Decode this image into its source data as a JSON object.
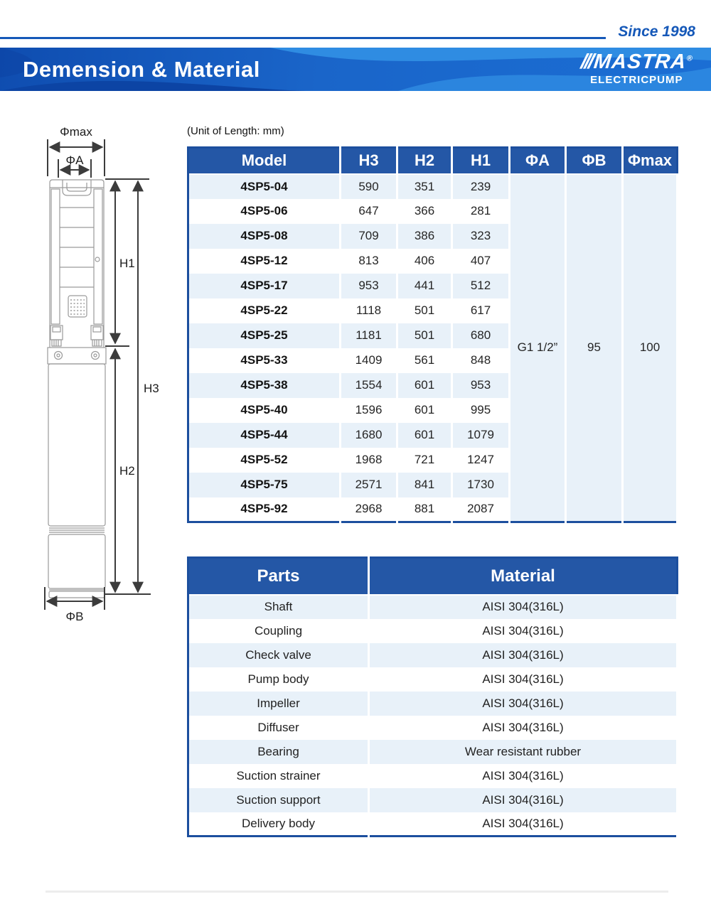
{
  "header": {
    "since": "Since 1998",
    "title": "Demension & Material",
    "logo": {
      "slashes": "///",
      "brand": "MASTRA",
      "registered": "®",
      "subtitle": "ELECTRICPUMP"
    }
  },
  "unit_note": "(Unit of Length: mm)",
  "diagram": {
    "labels": {
      "phi_max": "Φmax",
      "phi_a": "ΦA",
      "h1": "H1",
      "h2": "H2",
      "h3": "H3",
      "phi_b": "ΦB"
    }
  },
  "spec_table": {
    "headers": [
      "Model",
      "H3",
      "H2",
      "H1",
      "ΦA",
      "ΦB",
      "Φmax"
    ],
    "rows": [
      [
        "4SP5-04",
        "590",
        "351",
        "239"
      ],
      [
        "4SP5-06",
        "647",
        "366",
        "281"
      ],
      [
        "4SP5-08",
        "709",
        "386",
        "323"
      ],
      [
        "4SP5-12",
        "813",
        "406",
        "407"
      ],
      [
        "4SP5-17",
        "953",
        "441",
        "512"
      ],
      [
        "4SP5-22",
        "1118",
        "501",
        "617"
      ],
      [
        "4SP5-25",
        "1181",
        "501",
        "680"
      ],
      [
        "4SP5-33",
        "1409",
        "561",
        "848"
      ],
      [
        "4SP5-38",
        "1554",
        "601",
        "953"
      ],
      [
        "4SP5-40",
        "1596",
        "601",
        "995"
      ],
      [
        "4SP5-44",
        "1680",
        "601",
        "1079"
      ],
      [
        "4SP5-52",
        "1968",
        "721",
        "1247"
      ],
      [
        "4SP5-75",
        "2571",
        "841",
        "1730"
      ],
      [
        "4SP5-92",
        "2968",
        "881",
        "2087"
      ]
    ],
    "merged_values": {
      "phi_a": "G1 1/2”",
      "phi_b": "95",
      "phi_max": "100"
    }
  },
  "parts_table": {
    "headers": [
      "Parts",
      "Material"
    ],
    "rows": [
      [
        "Shaft",
        "AISI 304(316L)"
      ],
      [
        "Coupling",
        "AISI 304(316L)"
      ],
      [
        "Check valve",
        "AISI 304(316L)"
      ],
      [
        "Pump body",
        "AISI 304(316L)"
      ],
      [
        "Impeller",
        "AISI 304(316L)"
      ],
      [
        "Diffuser",
        "AISI 304(316L)"
      ],
      [
        "Bearing",
        "Wear resistant rubber"
      ],
      [
        "Suction strainer",
        "AISI 304(316L)"
      ],
      [
        "Suction support",
        "AISI 304(316L)"
      ],
      [
        "Delivery body",
        "AISI 304(316L)"
      ]
    ]
  },
  "colors": {
    "accent_blue": "#1558b8",
    "table_header_blue": "#2457a6",
    "row_stripe": "#e8f1f9",
    "table_border": "#1c4f9e",
    "banner_dark": "#0c44a4",
    "banner_light": "#2f8ce2"
  }
}
